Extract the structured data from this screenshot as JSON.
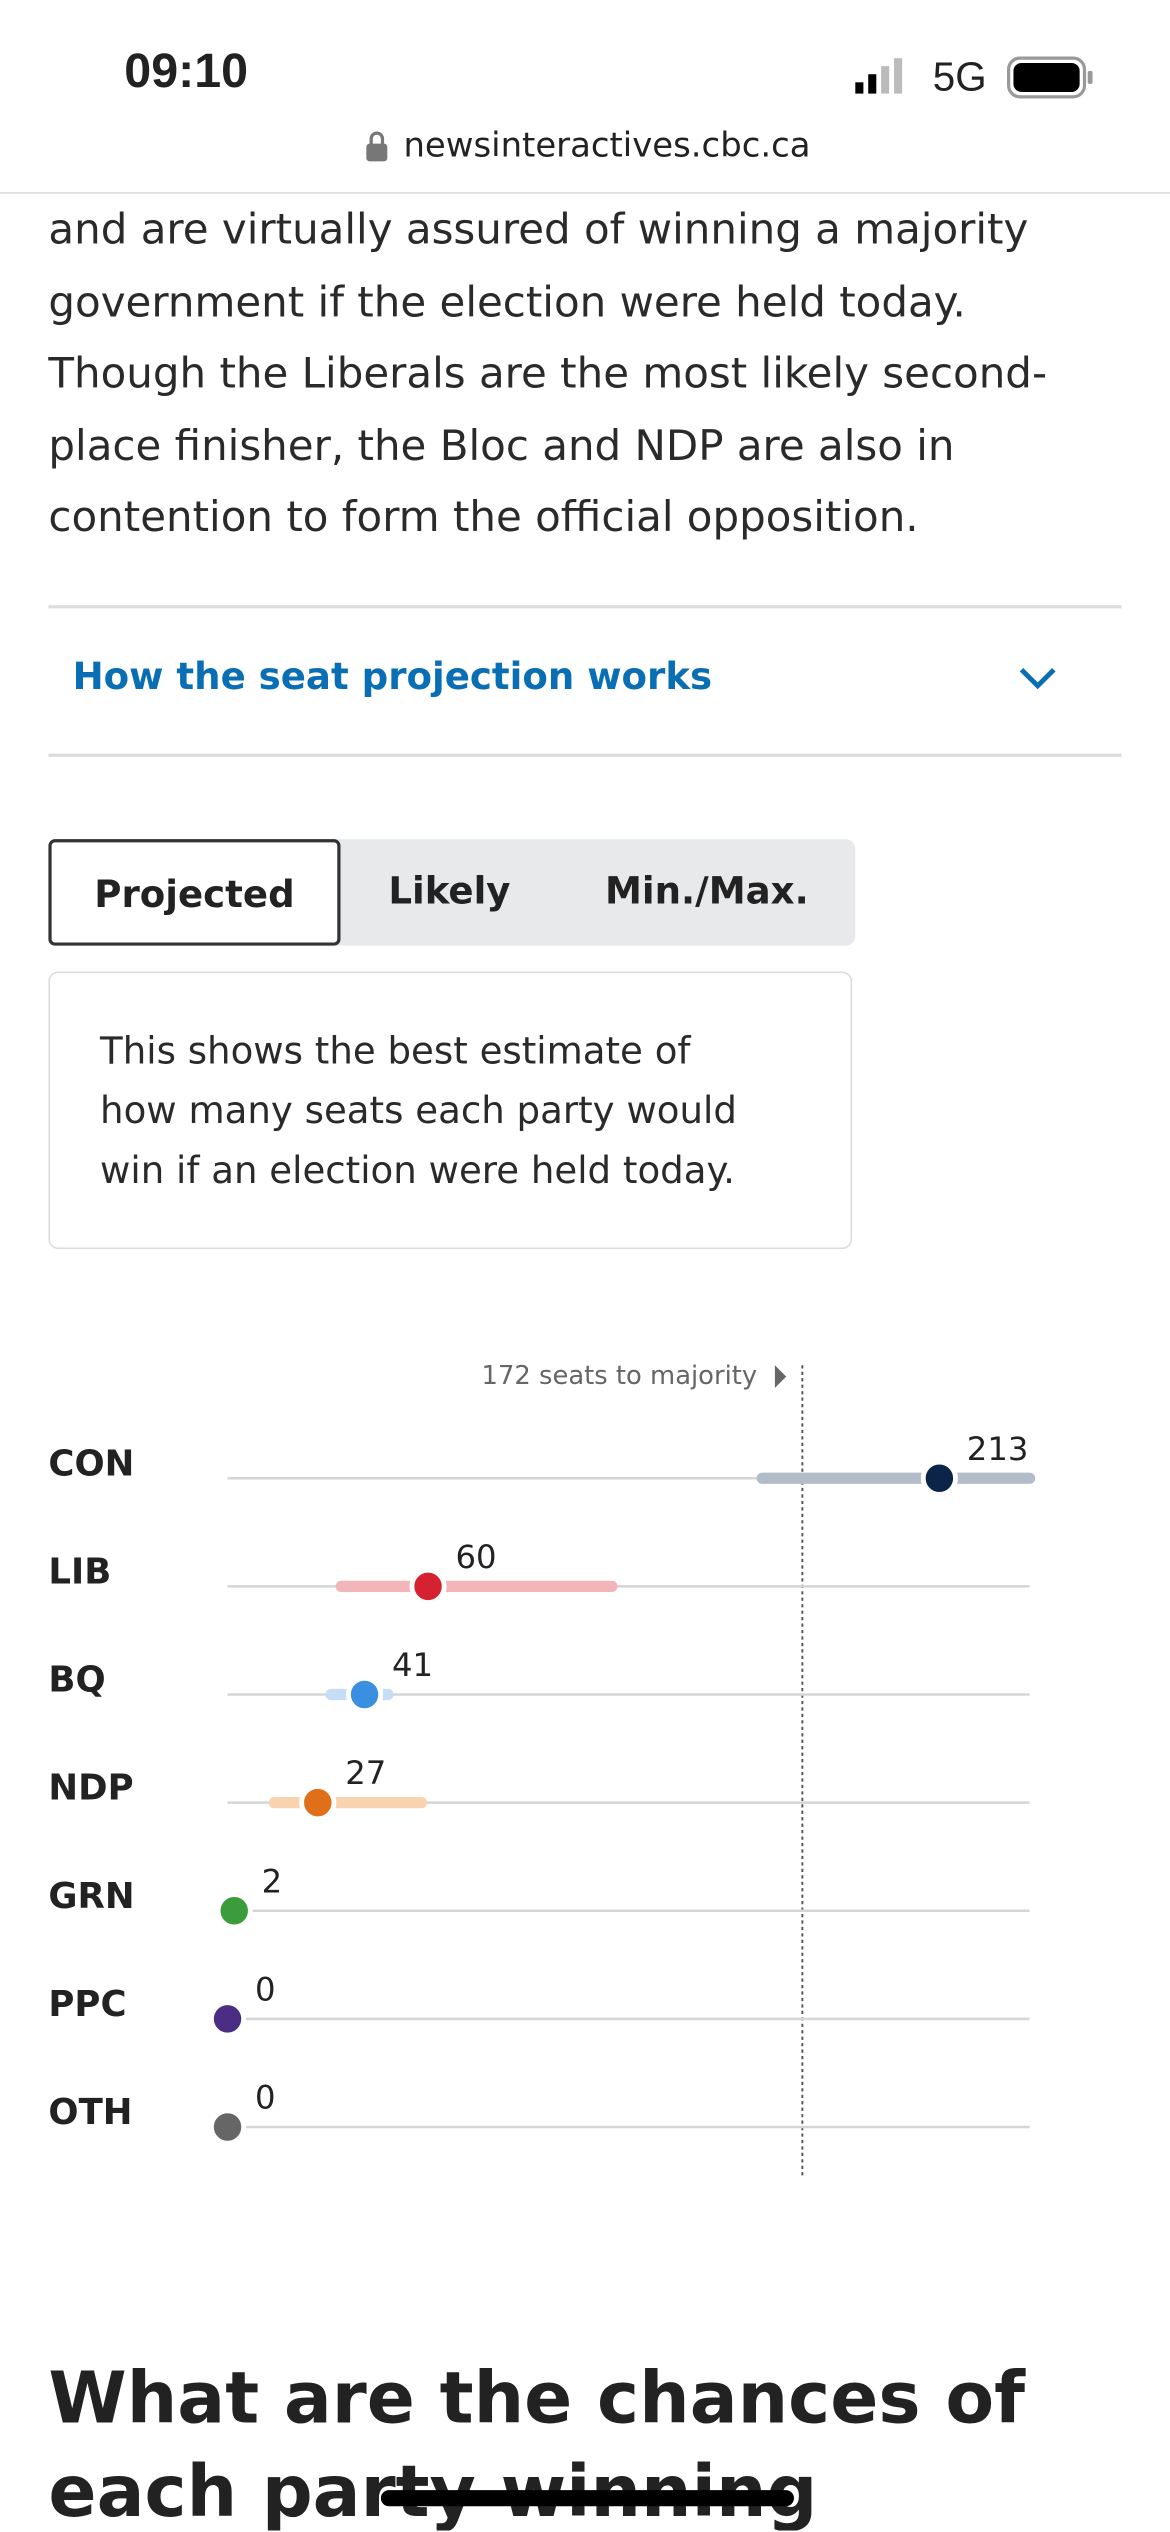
{
  "status_bar": {
    "time": "09:10",
    "network": "5G",
    "url": "newsinteractives.cbc.ca"
  },
  "article": {
    "paragraph": "and are virtually assured of winning a majority government if the election were held today. Though the Liberals are the most likely second-place finisher, the Bloc and NDP are also in contention to form the official opposition."
  },
  "accordion": {
    "label": "How the seat projection works"
  },
  "tabs": {
    "items": [
      "Projected",
      "Likely",
      "Min./Max."
    ],
    "active": 0
  },
  "description": "This shows the best estimate of how many seats each party would win if an election were held today.",
  "chart": {
    "majority_label": "172 seats to majority",
    "majority_value": 172,
    "xlim": [
      0,
      240
    ],
    "parties": [
      {
        "name": "CON",
        "value": 213,
        "low": 160,
        "high": 240,
        "color": "#0b2447",
        "range_color": "#b3bdc9"
      },
      {
        "name": "LIB",
        "value": 60,
        "low": 34,
        "high": 115,
        "color": "#d62230",
        "range_color": "#f2b6ba"
      },
      {
        "name": "BQ",
        "value": 41,
        "low": 31,
        "high": 48,
        "color": "#3b8fe0",
        "range_color": "#c6ddf5"
      },
      {
        "name": "NDP",
        "value": 27,
        "low": 14,
        "high": 58,
        "color": "#e06f1a",
        "range_color": "#f9d2b0"
      },
      {
        "name": "GRN",
        "value": 2,
        "color": "#3a9c3a"
      },
      {
        "name": "PPC",
        "value": 0,
        "color": "#4b2e83"
      },
      {
        "name": "OTH",
        "value": 0,
        "color": "#666666"
      }
    ]
  },
  "heading": "What are the chances of each party winning"
}
